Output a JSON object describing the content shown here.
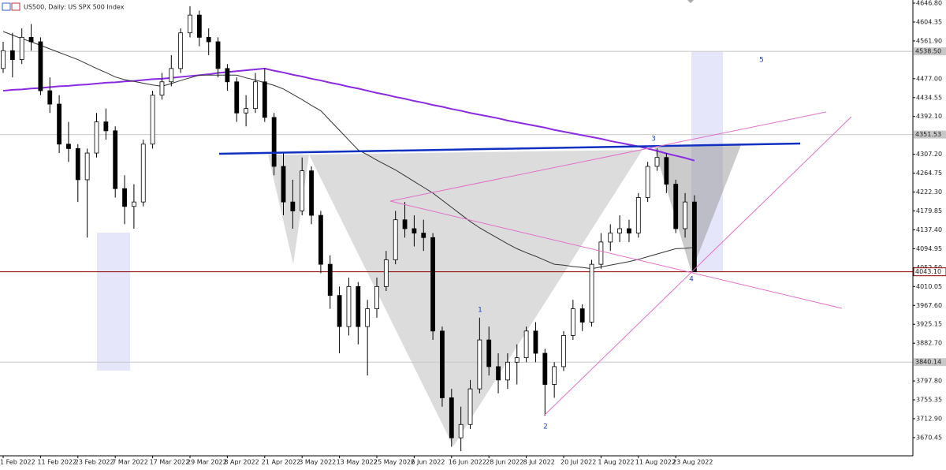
{
  "chart_data": {
    "type": "candlestick",
    "title": "US500, Daily:  US SPX 500 Index",
    "categories": [
      "1 Feb 2022",
      null,
      null,
      null,
      "11 Feb 2022",
      null,
      null,
      null,
      "23 Feb 2022",
      null,
      null,
      null,
      "7 Mar 2022",
      null,
      null,
      null,
      "17 Mar 2022",
      null,
      null,
      null,
      "29 Mar 2022",
      null,
      null,
      null,
      "8 Apr 2022",
      null,
      null,
      null,
      "21 Apr 2022",
      null,
      null,
      null,
      "3 May 2022",
      null,
      null,
      null,
      "13 May 2022",
      null,
      null,
      null,
      "25 May 2022",
      null,
      null,
      null,
      "6 Jun 2022",
      null,
      null,
      null,
      "16 Jun 2022",
      null,
      null,
      null,
      "28 Jun 2022",
      null,
      null,
      null,
      "8 Jul 2022",
      null,
      null,
      null,
      "20 Jul 2022",
      null,
      null,
      null,
      "1 Aug 2022",
      null,
      null,
      null,
      "11 Aug 2022",
      null,
      null,
      null,
      "23 Aug 2022",
      null,
      null
    ],
    "open": [
      4500,
      4540,
      4520,
      4570,
      4560,
      4450,
      4420,
      4330,
      4320,
      4250,
      4310,
      4380,
      4360,
      4230,
      4190,
      4200,
      4330,
      4440,
      4470,
      4500,
      4580,
      4620,
      4570,
      4560,
      4500,
      4470,
      4400,
      4410,
      4470,
      4390,
      4280,
      4200,
      4180,
      4270,
      4170,
      4060,
      3990,
      3920,
      4010,
      3920,
      3960,
      4010,
      4070,
      4160,
      4140,
      4130,
      4120,
      3910,
      3760,
      3670,
      3700,
      3780,
      3890,
      3830,
      3800,
      3840,
      3850,
      3910,
      3860,
      3790,
      3830,
      3900,
      3960,
      3930,
      4060,
      4110,
      4130,
      4140,
      4130,
      4210,
      4280,
      4300,
      4240,
      4140,
      4200
    ],
    "high": [
      4560,
      4580,
      4590,
      4600,
      4570,
      4480,
      4440,
      4380,
      4330,
      4320,
      4400,
      4410,
      4370,
      4260,
      4240,
      4340,
      4450,
      4490,
      4530,
      4590,
      4640,
      4630,
      4590,
      4570,
      4510,
      4480,
      4440,
      4490,
      4500,
      4400,
      4310,
      4250,
      4300,
      4280,
      4180,
      4080,
      4010,
      4030,
      4020,
      3980,
      4030,
      4090,
      4180,
      4200,
      4170,
      4160,
      4130,
      3920,
      3780,
      3740,
      3800,
      3940,
      3920,
      3860,
      3860,
      3880,
      3920,
      3930,
      3870,
      3840,
      3910,
      3980,
      3970,
      4070,
      4130,
      4150,
      4170,
      4160,
      4220,
      4290,
      4320,
      4310,
      4250,
      4220,
      4215
    ],
    "low": [
      4490,
      4480,
      4510,
      4540,
      4440,
      4400,
      4310,
      4290,
      4200,
      4120,
      4300,
      4340,
      4210,
      4150,
      4140,
      4190,
      4320,
      4430,
      4460,
      4490,
      4570,
      4550,
      4530,
      4480,
      4450,
      4380,
      4370,
      4400,
      4380,
      4260,
      4170,
      4140,
      4170,
      4150,
      4040,
      3960,
      3860,
      3900,
      3880,
      3810,
      3940,
      4000,
      4060,
      4120,
      4100,
      4090,
      3890,
      3740,
      3650,
      3640,
      3690,
      3770,
      3810,
      3770,
      3780,
      3790,
      3840,
      3840,
      3720,
      3760,
      3820,
      3890,
      3910,
      3920,
      4050,
      4090,
      4110,
      4110,
      4120,
      4200,
      4270,
      4220,
      4130,
      4120,
      4043.1
    ],
    "close": [
      4540,
      4520,
      4570,
      4560,
      4450,
      4420,
      4330,
      4320,
      4250,
      4310,
      4380,
      4360,
      4230,
      4190,
      4200,
      4330,
      4440,
      4470,
      4500,
      4580,
      4620,
      4570,
      4560,
      4500,
      4470,
      4400,
      4410,
      4470,
      4390,
      4280,
      4200,
      4180,
      4270,
      4170,
      4060,
      3990,
      3920,
      4010,
      3920,
      3960,
      4010,
      4070,
      4160,
      4140,
      4130,
      4120,
      3910,
      3760,
      3670,
      3700,
      3780,
      3890,
      3830,
      3800,
      3840,
      3850,
      3910,
      3860,
      3790,
      3830,
      3900,
      3960,
      3930,
      4060,
      4110,
      4130,
      4140,
      4130,
      4210,
      4280,
      4300,
      4240,
      4140,
      4200,
      4043.1
    ],
    "overlays": [
      {
        "color": "#8a2be2",
        "values": [
          4450,
          4452,
          4453,
          4455,
          4456,
          4458,
          4460,
          4461,
          4463,
          4464,
          4466,
          4468,
          4469,
          4471,
          4472,
          4474,
          4476,
          4477,
          4479,
          4481,
          4483,
          4485,
          4487,
          4490,
          4492,
          4494,
          4496,
          4498,
          4500,
          4495,
          4491,
          4486,
          4482,
          4477,
          4473,
          4468,
          4464,
          4459,
          4455,
          4450,
          4445,
          4441,
          4436,
          4432,
          4427,
          4423,
          4418,
          4414,
          4409,
          4405,
          4400,
          4396,
          4392,
          4388,
          4383,
          4379,
          4375,
          4371,
          4367,
          4362,
          4358,
          4354,
          4350,
          4346,
          4342,
          4337,
          4333,
          4329,
          4325,
          4320,
          4315,
          4309,
          4304,
          4299,
          4293
        ]
      },
      {
        "color": "#333333",
        "values": [
          4583,
          4575,
          4567,
          4560,
          4552,
          4544,
          4536,
          4528,
          4520,
          4510,
          4500,
          4491,
          4481,
          4475,
          4471,
          4467,
          4463,
          4460,
          4466,
          4473,
          4479,
          4485,
          4485,
          4485,
          4485,
          4485,
          4479,
          4474,
          4468,
          4462,
          4454,
          4442,
          4430,
          4417,
          4405,
          4383,
          4361,
          4339,
          4317,
          4306,
          4294,
          4283,
          4272,
          4259,
          4246,
          4233,
          4220,
          4204,
          4188,
          4172,
          4156,
          4142,
          4130,
          4118,
          4106,
          4095,
          4086,
          4078,
          4069,
          4060,
          4058,
          4055,
          4053,
          4050,
          4054,
          4058,
          4062,
          4066,
          4071,
          4077,
          4083,
          4089,
          4095,
          4096,
          4098
        ]
      }
    ],
    "levels": [
      {
        "value": 4538.5,
        "label": "4538.50",
        "color": "#c8c8c8"
      },
      {
        "value": 4351.53,
        "label": "4351.53",
        "color": "#c8c8c8"
      },
      {
        "value": 4043.1,
        "label": "4043.10",
        "color": "#8b0000"
      },
      {
        "value": 3840.14,
        "label": "3840.14",
        "color": "#c8c8c8"
      }
    ],
    "annotations": [
      "1",
      "2",
      "3",
      "4",
      "5"
    ],
    "ylim": [
      3629.6,
      4653.9
    ],
    "yticks": [
      {
        "value": 4646.8,
        "label": "4646.80"
      },
      {
        "value": 4604.35,
        "label": "4604.35"
      },
      {
        "value": 4561.9,
        "label": "4561.90"
      },
      {
        "value": 4477,
        "label": "4477.00"
      },
      {
        "value": 4434.55,
        "label": "4434.55"
      },
      {
        "value": 4392.1,
        "label": "4392.10"
      },
      {
        "value": 4307.2,
        "label": "4307.20"
      },
      {
        "value": 4264.75,
        "label": "4264.75"
      },
      {
        "value": 4222.3,
        "label": "4222.30"
      },
      {
        "value": 4179.85,
        "label": "4179.85"
      },
      {
        "value": 4137.4,
        "label": "4137.40"
      },
      {
        "value": 4094.95,
        "label": "4094.95"
      },
      {
        "value": 4052.5,
        "label": "4052.50"
      },
      {
        "value": 4010.05,
        "label": "4010.05"
      },
      {
        "value": 3967.6,
        "label": "3967.60"
      },
      {
        "value": 3925.15,
        "label": "3925.15"
      },
      {
        "value": 3882.7,
        "label": "3882.70"
      },
      {
        "value": 3797.8,
        "label": "3797.80"
      },
      {
        "value": 3755.35,
        "label": "3755.35"
      },
      {
        "value": 3712.9,
        "label": "3712.90"
      },
      {
        "value": 3670.45,
        "label": "3670.45"
      }
    ],
    "bull_color": "#ffffff",
    "bear_color": "#000000"
  }
}
